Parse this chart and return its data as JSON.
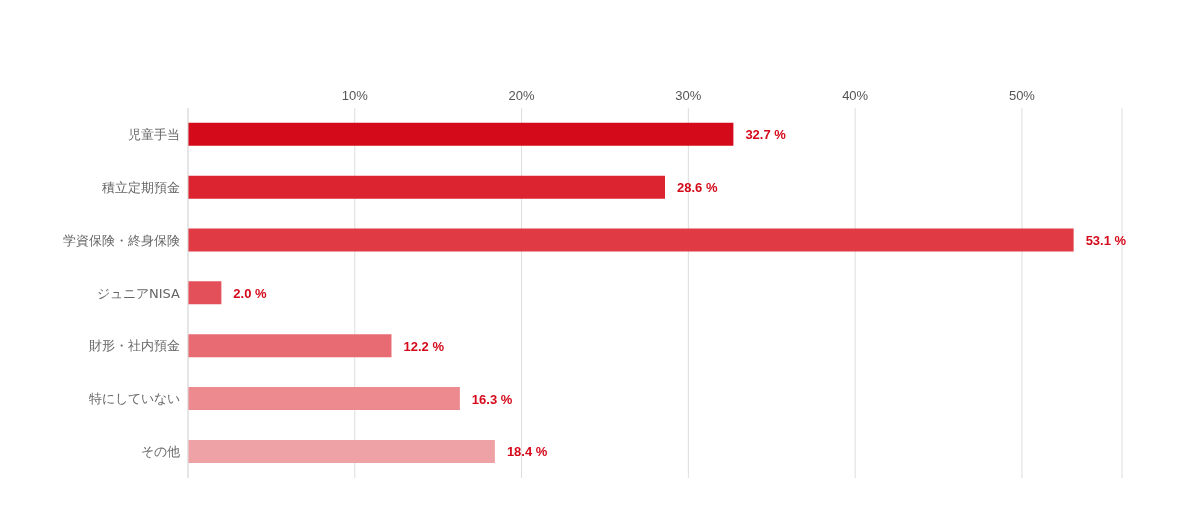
{
  "chart_data": {
    "type": "bar",
    "orientation": "horizontal",
    "categories": [
      "児童手当",
      "積立定期預金",
      "学資保険・終身保険",
      "ジュニアNISA",
      "財形・社内預金",
      "特にしていない",
      "その他"
    ],
    "values": [
      32.7,
      28.6,
      53.1,
      2.0,
      12.2,
      16.3,
      18.4
    ],
    "colors": [
      "#d40a1a",
      "#dc2430",
      "#e03a44",
      "#e4505a",
      "#e86a72",
      "#ec8a90",
      "#efa2a6"
    ],
    "value_labels": [
      "32.7 %",
      "28.6 %",
      "53.1 %",
      "2.0 %",
      "12.2 %",
      "16.3 %",
      "18.4 %"
    ],
    "xlim": [
      0,
      56
    ],
    "xticks": [
      {
        "value": 10,
        "label": "10%"
      },
      {
        "value": 20,
        "label": "20%"
      },
      {
        "value": 30,
        "label": "30%"
      },
      {
        "value": 40,
        "label": "40%"
      },
      {
        "value": 50,
        "label": "50%"
      }
    ],
    "grid": "x"
  }
}
